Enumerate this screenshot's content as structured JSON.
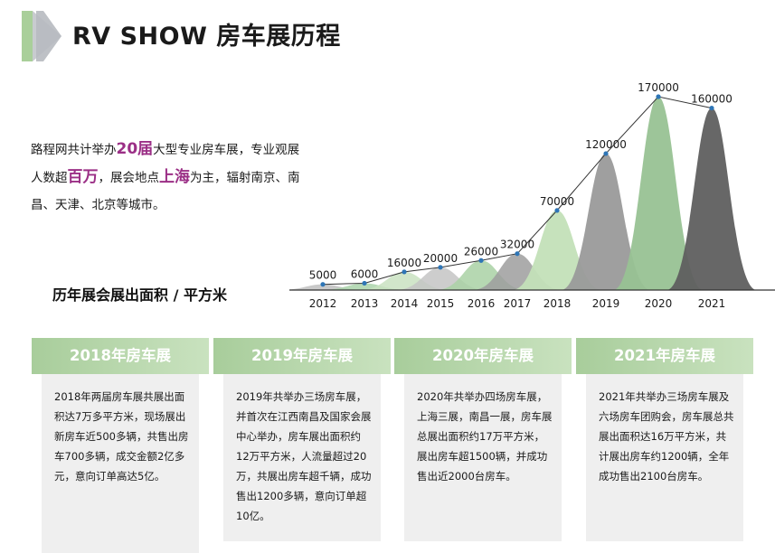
{
  "page": {
    "title": "RV SHOW 房车展历程",
    "accent_color": "#9b2f86"
  },
  "intro": {
    "p1": "路程网共计举办",
    "h1": "20届",
    "p2": "大型专业房车展，专业观展人数超",
    "h2": "百万",
    "p3": "，展会地点",
    "h3": "上海",
    "p4": "为主，辐射南京、南昌、天津、北京等城市。"
  },
  "chart_title": "历年展会展出面积 / 平方米",
  "chart_data": {
    "type": "area",
    "categories": [
      "2012",
      "2013",
      "2014",
      "2015",
      "2016",
      "2017",
      "2018",
      "2019",
      "2020",
      "2021"
    ],
    "values": [
      5000,
      6000,
      16000,
      20000,
      26000,
      32000,
      70000,
      120000,
      170000,
      160000
    ],
    "series_colors": [
      "#bfbfbf",
      "#aad3aa",
      "#c9e2c1",
      "#c4c4c4",
      "#a9d1a5",
      "#9e9e9e",
      "#c3e0b8",
      "#9a9a9a",
      "#98c294",
      "#5f5f5f"
    ],
    "line_color": "#333333",
    "marker_color": "#2e75b6",
    "axis_color": "#333333",
    "grid": false
  },
  "cards": [
    {
      "title": "2018年房车展",
      "body": "2018年两届房车展共展出面积达7万多平方米，现场展出新房车近500多辆，共售出房车700多辆，成交金额2亿多元，意向订单高达5亿。"
    },
    {
      "title": "2019年房车展",
      "body": "2019年共举办三场房车展，并首次在江西南昌及国家会展中心举办，房车展出面积约12万平方米，人流量超过20万，共展出房车超千辆，成功售出1200多辆，意向订单超10亿。"
    },
    {
      "title": "2020年房车展",
      "body": "2020年共举办四场房车展，上海三展，南昌一展，房车展总展出面积约17万平方米，展出房车超1500辆，并成功售出近2000台房车。"
    },
    {
      "title": "2021年房车展",
      "body": "2021年共举办三场房车展及六场房车团购会，房车展总共展出面积达16万平方米，共计展出房车约1200辆，全年成功售出2100台房车。"
    }
  ]
}
